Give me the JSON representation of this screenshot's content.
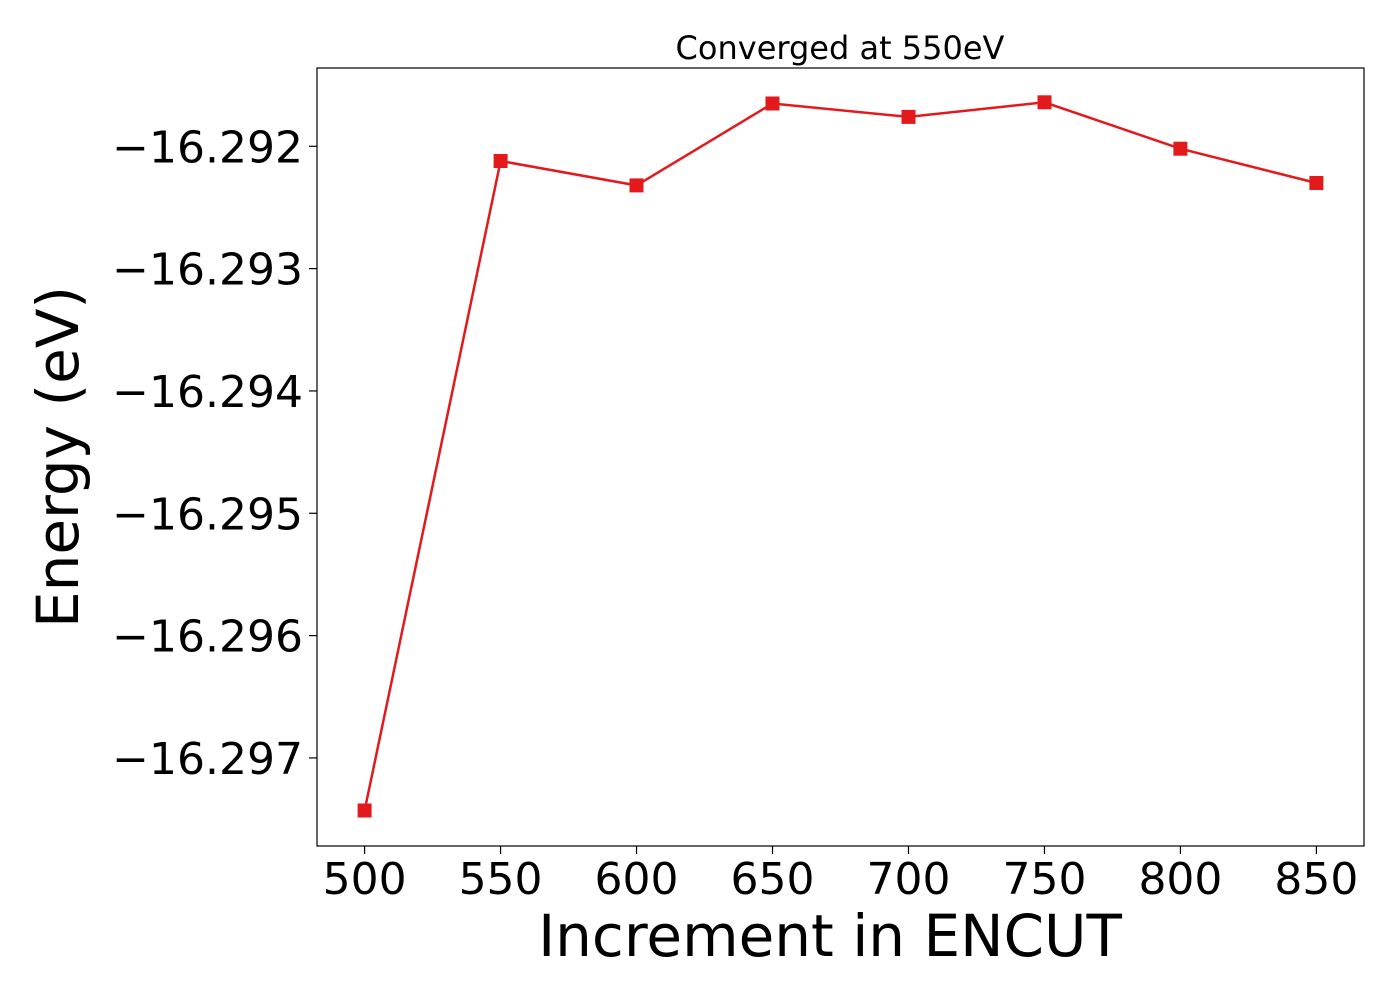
{
  "chart_data": {
    "type": "line",
    "title": "Converged at 550eV",
    "xlabel": "Increment in ENCUT",
    "ylabel": "Energy (eV)",
    "x": [
      500,
      550,
      600,
      650,
      700,
      750,
      800,
      850
    ],
    "series": [
      {
        "values": [
          -16.29743,
          -16.29212,
          -16.29232,
          -16.29165,
          -16.29176,
          -16.29164,
          -16.29202,
          -16.2923
        ],
        "color": "#e31a1c",
        "marker": "square"
      }
    ],
    "xticks": [
      500,
      550,
      600,
      650,
      700,
      750,
      800,
      850
    ],
    "xtick_labels": [
      "500",
      "550",
      "600",
      "650",
      "700",
      "750",
      "800",
      "850"
    ],
    "yticks": [
      -16.297,
      -16.296,
      -16.295,
      -16.294,
      -16.293,
      -16.292
    ],
    "ytick_labels": [
      "−16.297",
      "−16.296",
      "−16.295",
      "−16.294",
      "−16.293",
      "−16.292"
    ],
    "xlim": [
      482.5,
      867.5
    ],
    "ylim": [
      -16.29772,
      -16.29136
    ],
    "grid": false,
    "legend": "none"
  }
}
